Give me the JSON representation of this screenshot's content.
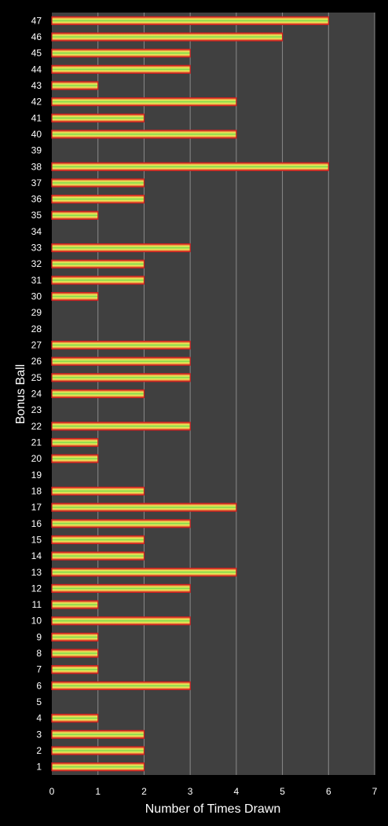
{
  "chart_data": {
    "type": "bar",
    "orientation": "horizontal",
    "xlabel": "Number of Times Drawn",
    "ylabel": "Bonus Ball",
    "xlim": [
      0,
      7
    ],
    "x_ticks": [
      "0",
      "1",
      "2",
      "3",
      "4",
      "5",
      "6",
      "7"
    ],
    "grid": "vertical",
    "legend": "none",
    "categories": [
      "1",
      "2",
      "3",
      "4",
      "5",
      "6",
      "7",
      "8",
      "9",
      "10",
      "11",
      "12",
      "13",
      "14",
      "15",
      "16",
      "17",
      "18",
      "19",
      "20",
      "21",
      "22",
      "23",
      "24",
      "25",
      "26",
      "27",
      "28",
      "29",
      "30",
      "31",
      "32",
      "33",
      "34",
      "35",
      "36",
      "37",
      "38",
      "39",
      "40",
      "41",
      "42",
      "43",
      "44",
      "45",
      "46",
      "47"
    ],
    "values": [
      2,
      2,
      2,
      1,
      0,
      3,
      1,
      1,
      1,
      3,
      1,
      3,
      4,
      2,
      2,
      3,
      4,
      2,
      0,
      1,
      1,
      3,
      0,
      2,
      3,
      3,
      3,
      0,
      0,
      1,
      2,
      2,
      3,
      0,
      1,
      2,
      2,
      6,
      0,
      4,
      2,
      4,
      1,
      3,
      3,
      5,
      6
    ],
    "colors": {
      "background": "#000000",
      "plot_area": "#404040",
      "gridline": "#8a8a8a",
      "bar_edge": "#d42020",
      "bar_mid": "#f2ee5a",
      "bar_inner": "#7ed64a",
      "text": "#ffffff"
    }
  }
}
